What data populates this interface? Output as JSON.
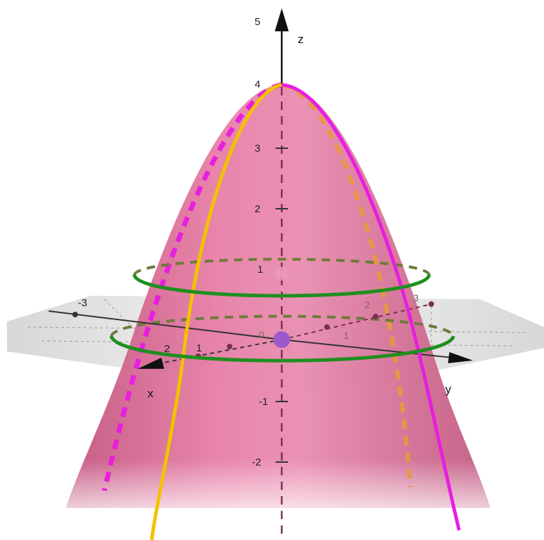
{
  "axes": {
    "z": {
      "name": "z",
      "ticks": [
        "5",
        "4",
        "3",
        "2",
        "1",
        "-1",
        "-2"
      ]
    },
    "x": {
      "name": "x",
      "ticks": [
        "2",
        "1"
      ]
    },
    "y": {
      "name": "y",
      "ticks": [
        "-3",
        "3",
        "2",
        "1"
      ]
    },
    "origin_label": "0"
  },
  "colors": {
    "surface": "#d9668f",
    "plane": "#c8c8c8",
    "trace_yellow": "#f2c200",
    "trace_magenta": "#e81ee0",
    "trace_orange_dashed": "#e89a3a",
    "level_circle": "#1f8f1f",
    "point": "#9b59c9"
  },
  "icons": {
    "z_arrow": "arrow-up-icon",
    "x_arrow": "arrow-left-icon",
    "y_arrow": "arrow-right-icon"
  }
}
